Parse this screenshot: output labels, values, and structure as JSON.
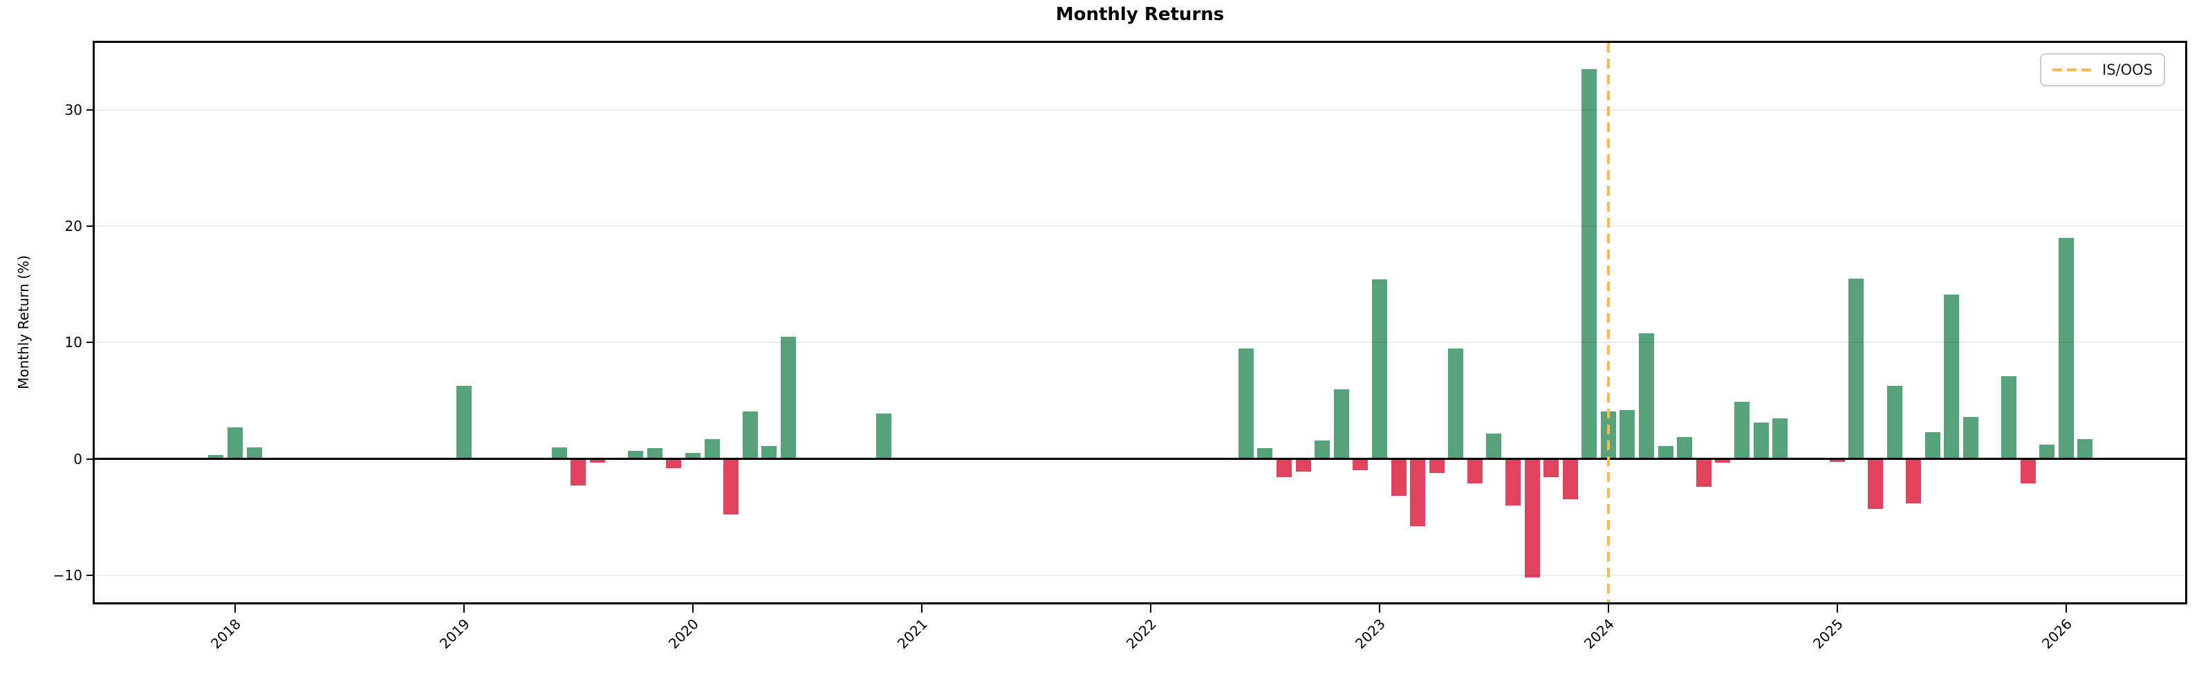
{
  "title": "Monthly Returns",
  "legend": {
    "label": "IS/OOS"
  },
  "colors": {
    "positive": "#57a27a",
    "negative": "#e0435e",
    "split_line": "#fcba4a",
    "grid": "rgba(0,0,0,0.08)",
    "spine": "#000000"
  },
  "chart_data": {
    "type": "bar",
    "title": "Monthly Returns",
    "xlabel": "",
    "ylabel": "Monthly Return (%)",
    "grid": true,
    "legend_position": "upper right",
    "ylim": [
      -12.33,
      35.74
    ],
    "xlim_months_since_jan2018": [
      -7.36,
      102.24
    ],
    "bar_width_months": 0.8,
    "y_ticks": [
      {
        "value": -10,
        "label": "−10"
      },
      {
        "value": 0,
        "label": "0"
      },
      {
        "value": 10,
        "label": "10"
      },
      {
        "value": 20,
        "label": "20"
      },
      {
        "value": 30,
        "label": "30"
      }
    ],
    "x_ticks": [
      {
        "label": "2018",
        "year": 2018
      },
      {
        "label": "2019",
        "year": 2019
      },
      {
        "label": "2020",
        "year": 2020
      },
      {
        "label": "2021",
        "year": 2021
      },
      {
        "label": "2022",
        "year": 2022
      },
      {
        "label": "2023",
        "year": 2023
      },
      {
        "label": "2024",
        "year": 2024
      },
      {
        "label": "2025",
        "year": 2025
      },
      {
        "label": "2026",
        "year": 2026
      }
    ],
    "split_line": {
      "label": "IS/OOS",
      "year": 2024,
      "month": 1,
      "style": "dashed",
      "color": "#fcba4a"
    },
    "series": [
      {
        "name": "Monthly Return (%)",
        "positive_color": "#57a27a",
        "negative_color": "#e0435e",
        "points": [
          {
            "year": 2017,
            "month": 12,
            "value": 0.3
          },
          {
            "year": 2018,
            "month": 1,
            "value": 2.7
          },
          {
            "year": 2018,
            "month": 2,
            "value": 1.0
          },
          {
            "year": 2019,
            "month": 1,
            "value": 6.3
          },
          {
            "year": 2019,
            "month": 6,
            "value": 1.0
          },
          {
            "year": 2019,
            "month": 7,
            "value": -2.3
          },
          {
            "year": 2019,
            "month": 8,
            "value": -0.3
          },
          {
            "year": 2019,
            "month": 9,
            "value": 0.1
          },
          {
            "year": 2019,
            "month": 10,
            "value": 0.7
          },
          {
            "year": 2019,
            "month": 11,
            "value": 0.9
          },
          {
            "year": 2019,
            "month": 12,
            "value": -0.8
          },
          {
            "year": 2020,
            "month": 1,
            "value": 0.5
          },
          {
            "year": 2020,
            "month": 2,
            "value": 1.7
          },
          {
            "year": 2020,
            "month": 3,
            "value": -4.8
          },
          {
            "year": 2020,
            "month": 4,
            "value": 4.1
          },
          {
            "year": 2020,
            "month": 5,
            "value": 1.1
          },
          {
            "year": 2020,
            "month": 6,
            "value": 10.5
          },
          {
            "year": 2020,
            "month": 11,
            "value": 3.9
          },
          {
            "year": 2022,
            "month": 6,
            "value": 9.5
          },
          {
            "year": 2022,
            "month": 7,
            "value": 0.9
          },
          {
            "year": 2022,
            "month": 8,
            "value": -1.6
          },
          {
            "year": 2022,
            "month": 9,
            "value": -1.1
          },
          {
            "year": 2022,
            "month": 10,
            "value": 1.6
          },
          {
            "year": 2022,
            "month": 11,
            "value": 6.0
          },
          {
            "year": 2022,
            "month": 12,
            "value": -1.0
          },
          {
            "year": 2023,
            "month": 1,
            "value": 15.4
          },
          {
            "year": 2023,
            "month": 2,
            "value": -3.2
          },
          {
            "year": 2023,
            "month": 3,
            "value": -5.8
          },
          {
            "year": 2023,
            "month": 4,
            "value": -1.2
          },
          {
            "year": 2023,
            "month": 5,
            "value": 9.5
          },
          {
            "year": 2023,
            "month": 6,
            "value": -2.1
          },
          {
            "year": 2023,
            "month": 7,
            "value": 2.2
          },
          {
            "year": 2023,
            "month": 8,
            "value": -4.0
          },
          {
            "year": 2023,
            "month": 9,
            "value": -10.2
          },
          {
            "year": 2023,
            "month": 10,
            "value": -1.6
          },
          {
            "year": 2023,
            "month": 11,
            "value": -3.5
          },
          {
            "year": 2023,
            "month": 12,
            "value": 33.5
          },
          {
            "year": 2024,
            "month": 1,
            "value": 4.1
          },
          {
            "year": 2024,
            "month": 2,
            "value": 4.2
          },
          {
            "year": 2024,
            "month": 3,
            "value": 10.8
          },
          {
            "year": 2024,
            "month": 4,
            "value": 1.1
          },
          {
            "year": 2024,
            "month": 5,
            "value": 1.9
          },
          {
            "year": 2024,
            "month": 6,
            "value": -2.4
          },
          {
            "year": 2024,
            "month": 7,
            "value": -0.3
          },
          {
            "year": 2024,
            "month": 8,
            "value": 4.9
          },
          {
            "year": 2024,
            "month": 9,
            "value": 3.1
          },
          {
            "year": 2024,
            "month": 10,
            "value": 3.5
          },
          {
            "year": 2025,
            "month": 1,
            "value": -0.25
          },
          {
            "year": 2025,
            "month": 2,
            "value": 15.5
          },
          {
            "year": 2025,
            "month": 3,
            "value": -4.3
          },
          {
            "year": 2025,
            "month": 4,
            "value": 6.3
          },
          {
            "year": 2025,
            "month": 5,
            "value": -3.8
          },
          {
            "year": 2025,
            "month": 6,
            "value": 2.3
          },
          {
            "year": 2025,
            "month": 7,
            "value": 14.1
          },
          {
            "year": 2025,
            "month": 8,
            "value": 3.6
          },
          {
            "year": 2025,
            "month": 9,
            "value": 0.1
          },
          {
            "year": 2025,
            "month": 10,
            "value": 7.1
          },
          {
            "year": 2025,
            "month": 11,
            "value": -2.1
          },
          {
            "year": 2025,
            "month": 12,
            "value": 1.25
          },
          {
            "year": 2026,
            "month": 1,
            "value": 19.0
          },
          {
            "year": 2026,
            "month": 2,
            "value": 1.7
          }
        ]
      }
    ]
  }
}
